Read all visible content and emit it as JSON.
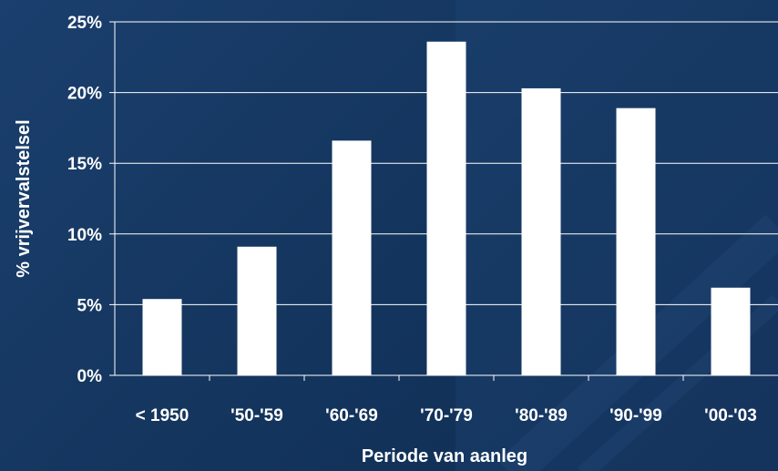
{
  "chart_data": {
    "type": "bar",
    "categories": [
      "< 1950",
      "'50-'59",
      "'60-'69",
      "'70-'79",
      "'80-'89",
      "'90-'99",
      "'00-'03"
    ],
    "values": [
      5.4,
      9.1,
      16.6,
      23.6,
      20.3,
      18.9,
      6.2
    ],
    "title": "",
    "xlabel": "Periode van aanleg",
    "ylabel": "% vrijvervalstelsel",
    "ylim": [
      0,
      25
    ],
    "yticks": [
      0,
      5,
      10,
      15,
      20,
      25
    ],
    "ytick_labels": [
      "0%",
      "5%",
      "10%",
      "15%",
      "20%",
      "25%"
    ],
    "grid": true,
    "legend": "none",
    "colors": {
      "bar": "#ffffff",
      "grid": "#ffffff",
      "background": "#16396a",
      "text": "#ffffff"
    }
  }
}
